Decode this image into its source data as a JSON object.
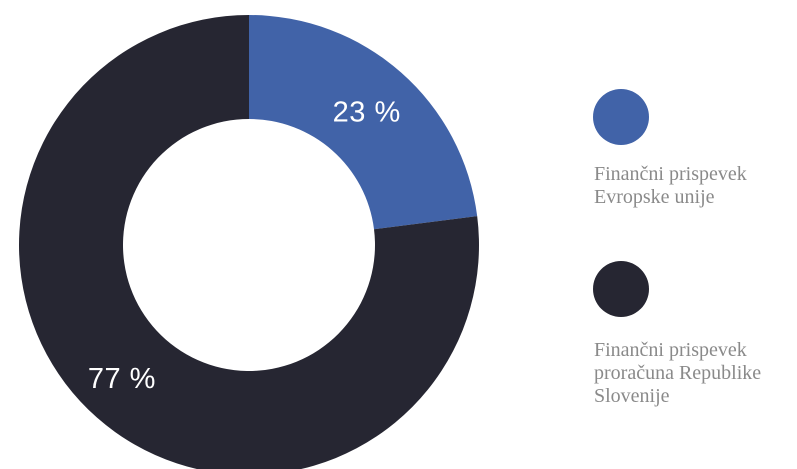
{
  "chart_data": {
    "type": "pie",
    "title": "",
    "donut": true,
    "series": [
      {
        "name": "Finančni prispevek Evropske unije",
        "label": "23 %",
        "value": 23,
        "color": "#4163a8"
      },
      {
        "name": "Finančni prispevek proračuna Republike Slovenije",
        "label": "77 %",
        "value": 77,
        "color": "#262632"
      }
    ],
    "legend_position": "right"
  }
}
